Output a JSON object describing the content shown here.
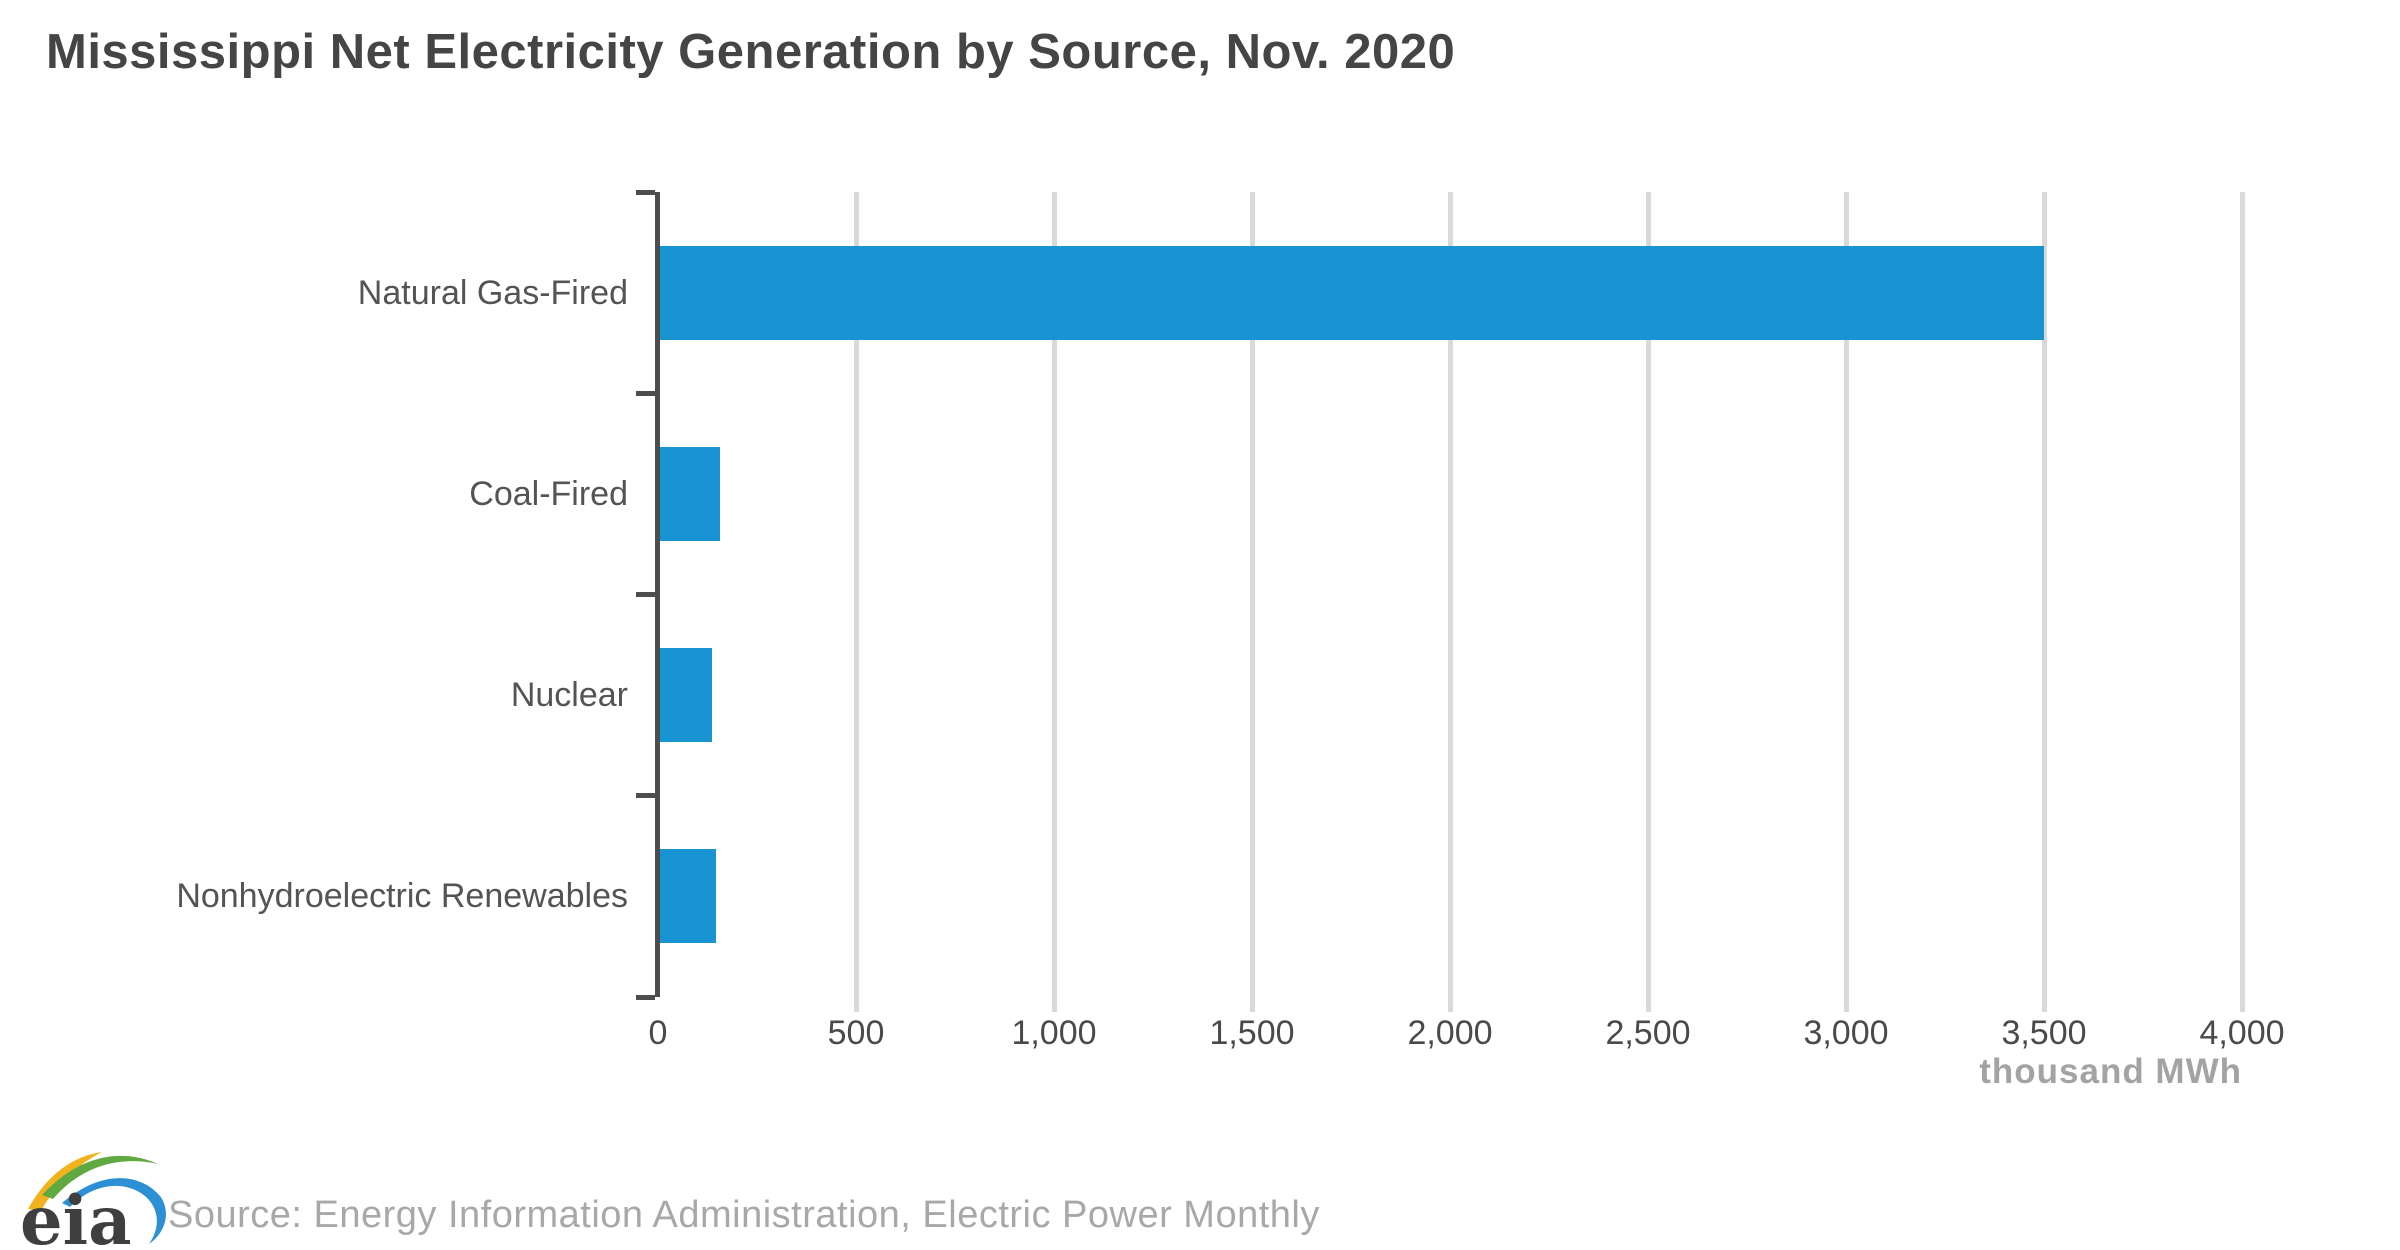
{
  "chart_data": {
    "type": "bar",
    "orientation": "horizontal",
    "title": "Mississippi Net Electricity Generation by Source, Nov. 2020",
    "categories": [
      "Natural Gas-Fired",
      "Coal-Fired",
      "Nuclear",
      "Nonhydroelectric Renewables"
    ],
    "values": [
      3500,
      157,
      136,
      146
    ],
    "xlabel": "thousand MWh",
    "xlim": [
      0,
      4000
    ],
    "xticks": [
      0,
      500,
      1000,
      1500,
      2000,
      2500,
      3000,
      3500,
      4000
    ],
    "grid": true,
    "legend": "none"
  },
  "footer": {
    "logo_text": "eia",
    "source_text": "Source: Energy Information Administration, Electric Power Monthly"
  },
  "colors": {
    "bar_blue": "#1794d1",
    "gridline_gray": "#d9d9d9",
    "axis_dark": "#4d4d4d",
    "title_gray": "#454545",
    "category_label_gray": "#545454",
    "tick_label_gray": "#4a4a4a",
    "unit_label_gray": "#a3a3a3",
    "source_gray": "#a8a8a8",
    "logo_text_gray": "#3f3f3f",
    "logo_yellow": "#f2b21d",
    "logo_green": "#5fa940",
    "logo_blue": "#2d90d5"
  }
}
